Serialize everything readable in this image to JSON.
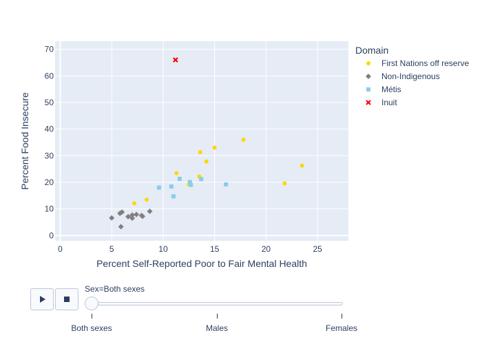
{
  "chart_data": {
    "type": "scatter",
    "title": "",
    "xlabel": "Percent Self-Reported Poor to Fair Mental Health",
    "ylabel": "Percent Food Insecure",
    "xlim": [
      -0.5,
      28
    ],
    "ylim": [
      -2,
      73
    ],
    "xticks": [
      0,
      5,
      10,
      15,
      20,
      25
    ],
    "yticks": [
      0,
      10,
      20,
      30,
      40,
      50,
      60,
      70
    ],
    "grid": true,
    "legend_title": "Domain",
    "legend_position": "right",
    "series": [
      {
        "name": "First Nations off reserve",
        "color": "#FFD700",
        "marker": "circle",
        "points": [
          [
            7.2,
            12.1
          ],
          [
            8.4,
            13.5
          ],
          [
            11.3,
            23.4
          ],
          [
            12.5,
            19.2
          ],
          [
            13.5,
            22.2
          ],
          [
            13.6,
            31.3
          ],
          [
            14.2,
            27.8
          ],
          [
            15.0,
            33.0
          ],
          [
            17.8,
            36.0
          ],
          [
            21.8,
            19.6
          ],
          [
            23.5,
            26.3
          ]
        ]
      },
      {
        "name": "Non-Indigenous",
        "color": "#808080",
        "marker": "diamond",
        "points": [
          [
            5.0,
            6.6
          ],
          [
            5.8,
            8.3
          ],
          [
            6.0,
            8.8
          ],
          [
            5.9,
            3.3
          ],
          [
            6.6,
            7.1
          ],
          [
            7.0,
            7.7
          ],
          [
            7.0,
            6.5
          ],
          [
            7.4,
            7.9
          ],
          [
            7.9,
            7.5
          ],
          [
            8.0,
            7.2
          ],
          [
            8.7,
            9.1
          ]
        ]
      },
      {
        "name": "Métis",
        "color": "#87CEEB",
        "marker": "square",
        "points": [
          [
            9.6,
            18.0
          ],
          [
            10.8,
            18.4
          ],
          [
            11.0,
            14.7
          ],
          [
            11.6,
            21.3
          ],
          [
            12.6,
            20.1
          ],
          [
            12.7,
            19.0
          ],
          [
            13.7,
            21.2
          ],
          [
            16.1,
            19.2
          ]
        ]
      },
      {
        "name": "Inuit",
        "color": "#FF0000",
        "marker": "x",
        "points": [
          [
            11.2,
            66.0
          ]
        ]
      }
    ]
  },
  "controls": {
    "play_icon": "play-icon",
    "stop_icon": "stop-icon",
    "current_label": "Sex=Both sexes",
    "steps": [
      "Both sexes",
      "Males",
      "Females"
    ],
    "active_step": 0
  }
}
